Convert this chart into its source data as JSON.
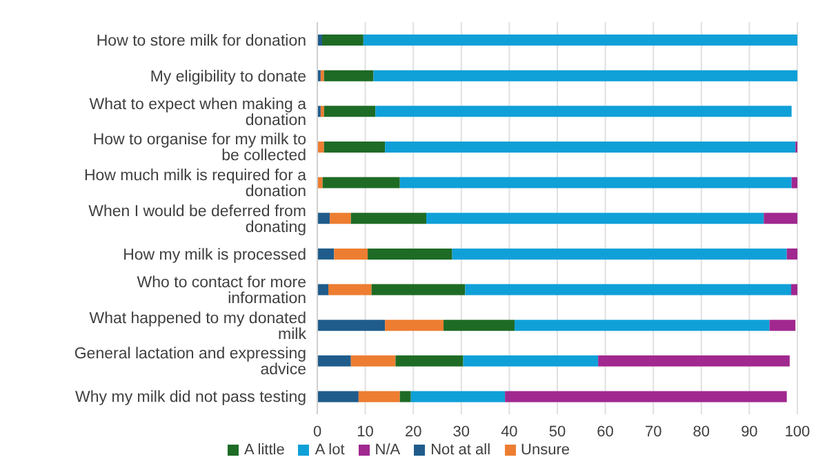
{
  "chart_data": {
    "type": "bar",
    "orientation": "horizontal",
    "stacked": true,
    "categories": [
      "How to store milk for donation",
      "My eligibility to donate",
      "What to expect when making a donation",
      "How to organise for my milk to be collected",
      "How much milk is required for a donation",
      "When I would be deferred from donating",
      "How my milk is processed",
      "Who to contact for more information",
      "What happened to my donated milk",
      "General lactation and expressing advice",
      "Why my milk did not pass testing"
    ],
    "series": [
      {
        "name": "Not at all",
        "color": "#1f5c8b",
        "values": [
          1,
          0.7,
          0.7,
          0,
          0,
          2.6,
          3.5,
          2.3,
          14.1,
          7.0,
          8.6
        ]
      },
      {
        "name": "Unsure",
        "color": "#ed7d31",
        "values": [
          0,
          0.7,
          0.7,
          1.4,
          1.1,
          4.4,
          7.0,
          9.0,
          12.2,
          9.3,
          8.6
        ]
      },
      {
        "name": "A little",
        "color": "#1e6b25",
        "values": [
          8.6,
          10.3,
          10.7,
          12.7,
          16.1,
          15.7,
          17.6,
          19.5,
          14.8,
          14.1,
          2.3
        ]
      },
      {
        "name": "A lot",
        "color": "#0fa0d8",
        "values": [
          90.4,
          88.3,
          86.7,
          85.5,
          81.6,
          70.3,
          69.7,
          67.9,
          53.1,
          28.1,
          19.6
        ]
      },
      {
        "name": "N/A",
        "color": "#a0288f",
        "values": [
          0,
          0,
          0,
          0.4,
          1.2,
          7.0,
          2.2,
          1.3,
          5.4,
          39.9,
          58.7
        ]
      }
    ],
    "xlim": [
      0,
      100
    ],
    "xticks": [
      0,
      10,
      20,
      30,
      40,
      50,
      60,
      70,
      80,
      90,
      100
    ],
    "grid": "x",
    "legend": "bottom"
  }
}
